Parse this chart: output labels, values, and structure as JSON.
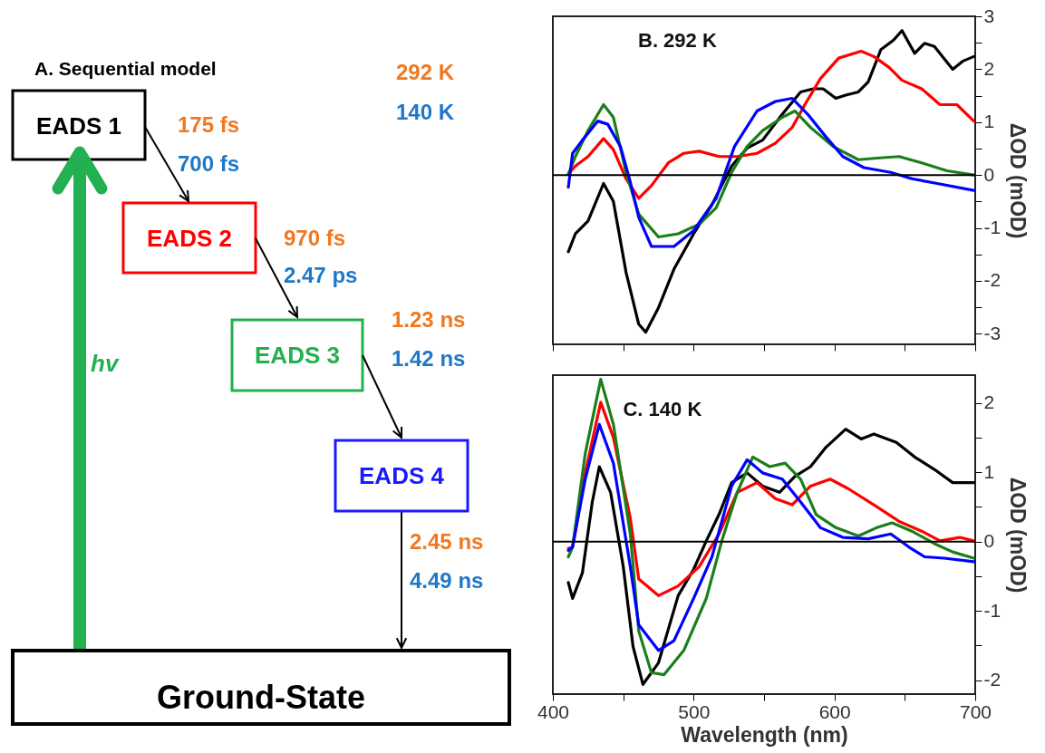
{
  "chart_data": [
    {
      "type": "other",
      "title": "A. Sequential model",
      "annotations": [
        "292 K",
        "140 K",
        "EADS 1",
        "175 fs",
        "700 fs",
        "EADS 2",
        "970 fs",
        "2.47 ps",
        "EADS 3",
        "1.23 ns",
        "1.42 ns",
        "EADS 4",
        "2.45 ns",
        "4.49 ns",
        "hv",
        "Ground-State"
      ]
    },
    {
      "type": "line",
      "title": "B. 292 K",
      "ylabel": "ΔOD (mOD)",
      "xlim": [
        400,
        700
      ],
      "ylim": [
        -3.2,
        3
      ],
      "tick_labels": "y",
      "grid": false,
      "xticks": [
        {
          "value": 400,
          "label": null
        },
        {
          "value": 450,
          "label": null
        },
        {
          "value": 500,
          "label": null
        },
        {
          "value": 550,
          "label": null
        },
        {
          "value": 600,
          "label": null
        },
        {
          "value": 650,
          "label": null
        },
        {
          "value": 700,
          "label": null
        }
      ],
      "yticks": [
        -3,
        {
          "value": -2.5,
          "label": null
        },
        -2,
        {
          "value": -1.5,
          "label": null
        },
        -1,
        {
          "value": -0.5,
          "label": null
        },
        0,
        {
          "value": 0.5,
          "label": null
        },
        1,
        {
          "value": 1.5,
          "label": null
        },
        2,
        {
          "value": 2.5,
          "label": null
        },
        3
      ],
      "ref_lines": [
        {
          "axis": "y",
          "value": 0,
          "label": null,
          "color": "#000000"
        }
      ],
      "series": [
        {
          "color": "#000000",
          "x": [
            411,
            416,
            425,
            436,
            443,
            452,
            461,
            466,
            475,
            486,
            500,
            513,
            527,
            538,
            549,
            563,
            576,
            585,
            592,
            601,
            608,
            617,
            624,
            633,
            642,
            648,
            657,
            664,
            671,
            684,
            691,
            699
          ],
          "values": [
            -1.45,
            -1.11,
            -0.87,
            -0.16,
            -0.5,
            -1.84,
            -2.82,
            -2.97,
            -2.51,
            -1.78,
            -1.11,
            -0.56,
            0.17,
            0.51,
            0.66,
            1.15,
            1.57,
            1.63,
            1.63,
            1.45,
            1.51,
            1.57,
            1.76,
            2.37,
            2.55,
            2.73,
            2.3,
            2.49,
            2.43,
            2.0,
            2.15,
            2.24
          ]
        },
        {
          "color": "#ff0000",
          "x": [
            411,
            416,
            425,
            436,
            443,
            452,
            461,
            470,
            482,
            493,
            504,
            518,
            531,
            545,
            558,
            570,
            579,
            590,
            603,
            619,
            628,
            639,
            648,
            662,
            675,
            687,
            699
          ],
          "values": [
            0.02,
            0.17,
            0.35,
            0.69,
            0.48,
            -0.07,
            -0.44,
            -0.2,
            0.23,
            0.41,
            0.45,
            0.35,
            0.35,
            0.41,
            0.6,
            0.9,
            1.33,
            1.82,
            2.21,
            2.34,
            2.24,
            2.03,
            1.79,
            1.63,
            1.33,
            1.33,
            1.02
          ]
        },
        {
          "color": "#1a7f1a",
          "x": [
            411,
            416,
            425,
            436,
            443,
            452,
            461,
            475,
            489,
            504,
            516,
            527,
            538,
            549,
            563,
            572,
            583,
            599,
            617,
            630,
            646,
            662,
            680,
            699
          ],
          "values": [
            0.02,
            0.35,
            0.84,
            1.33,
            1.09,
            0.05,
            -0.74,
            -1.17,
            -1.11,
            -0.93,
            -0.62,
            0.05,
            0.54,
            0.84,
            1.09,
            1.21,
            0.9,
            0.54,
            0.29,
            0.32,
            0.35,
            0.23,
            0.08,
            0
          ]
        },
        {
          "color": "#0000ff",
          "x": [
            411,
            414,
            421,
            432,
            439,
            448,
            455,
            461,
            470,
            486,
            500,
            516,
            529,
            545,
            558,
            570,
            581,
            594,
            606,
            621,
            640,
            655,
            673,
            699
          ],
          "values": [
            -0.23,
            0.41,
            0.66,
            1.02,
            0.96,
            0.54,
            -0.13,
            -0.8,
            -1.35,
            -1.35,
            -1.05,
            -0.44,
            0.54,
            1.21,
            1.39,
            1.45,
            1.15,
            0.72,
            0.35,
            0.14,
            0.05,
            -0.07,
            -0.16,
            -0.29
          ]
        }
      ]
    },
    {
      "type": "line",
      "title": "C. 140 K",
      "xlabel": "Wavelength (nm)",
      "ylabel": "ΔOD (mOD)",
      "xlim": [
        400,
        700
      ],
      "ylim": [
        -2.2,
        2.4
      ],
      "grid": false,
      "xticks": [
        400,
        {
          "value": 450,
          "label": null
        },
        500,
        {
          "value": 550,
          "label": null
        },
        600,
        {
          "value": 650,
          "label": null
        },
        700
      ],
      "yticks": [
        -2,
        {
          "value": -1.5,
          "label": null
        },
        -1,
        {
          "value": -0.5,
          "label": null
        },
        0,
        {
          "value": 0.5,
          "label": null
        },
        1,
        {
          "value": 1.5,
          "label": null
        },
        2
      ],
      "ref_lines": [
        {
          "axis": "y",
          "value": 0,
          "label": null,
          "color": "#000000"
        }
      ],
      "series": [
        {
          "color": "#000000",
          "x": [
            411,
            414,
            421,
            428,
            433,
            441,
            450,
            457,
            464,
            475,
            489,
            500,
            509,
            518,
            527,
            538,
            549,
            561,
            572,
            583,
            594,
            608,
            619,
            628,
            644,
            657,
            671,
            684,
            699
          ],
          "values": [
            -0.59,
            -0.82,
            -0.45,
            0.57,
            1.08,
            0.71,
            -0.36,
            -1.52,
            -2.06,
            -1.75,
            -0.78,
            -0.4,
            0.01,
            0.39,
            0.85,
            0.99,
            0.8,
            0.71,
            0.94,
            1.08,
            1.36,
            1.62,
            1.48,
            1.55,
            1.43,
            1.22,
            1.04,
            0.85,
            0.85
          ]
        },
        {
          "color": "#ff0000",
          "x": [
            411,
            414,
            423,
            434,
            443,
            455,
            461,
            475,
            489,
            504,
            518,
            531,
            545,
            558,
            570,
            583,
            597,
            610,
            628,
            646,
            662,
            675,
            689,
            699
          ],
          "values": [
            -0.1,
            -0.08,
            0.99,
            2.01,
            1.5,
            0.34,
            -0.54,
            -0.78,
            -0.64,
            -0.36,
            0.11,
            0.71,
            0.85,
            0.62,
            0.53,
            0.8,
            0.9,
            0.76,
            0.53,
            0.29,
            0.15,
            0.01,
            0.06,
            0.01
          ]
        },
        {
          "color": "#1a7f1a",
          "x": [
            411,
            414,
            423,
            434,
            443,
            455,
            461,
            470,
            479,
            493,
            509,
            520,
            531,
            542,
            554,
            565,
            576,
            587,
            601,
            617,
            630,
            641,
            655,
            671,
            684,
            699
          ],
          "values": [
            -0.22,
            -0.08,
            1.27,
            2.34,
            1.69,
            0.11,
            -1.29,
            -1.89,
            -1.92,
            -1.57,
            -0.82,
            0.01,
            0.71,
            1.22,
            1.08,
            1.13,
            0.9,
            0.39,
            0.2,
            0.08,
            0.2,
            0.27,
            0.15,
            -0.03,
            -0.15,
            -0.24
          ]
        },
        {
          "color": "#0000ff",
          "x": [
            411,
            414,
            423,
            433,
            443,
            455,
            461,
            475,
            486,
            500,
            513,
            527,
            538,
            549,
            563,
            576,
            590,
            606,
            624,
            640,
            653,
            664,
            678,
            699
          ],
          "values": [
            -0.13,
            -0.08,
            0.9,
            1.69,
            1.13,
            -0.36,
            -1.2,
            -1.57,
            -1.43,
            -0.82,
            -0.22,
            0.8,
            1.18,
            0.99,
            0.9,
            0.57,
            0.2,
            0.06,
            0.04,
            0.11,
            -0.08,
            -0.22,
            -0.24,
            -0.29
          ]
        }
      ]
    }
  ]
}
